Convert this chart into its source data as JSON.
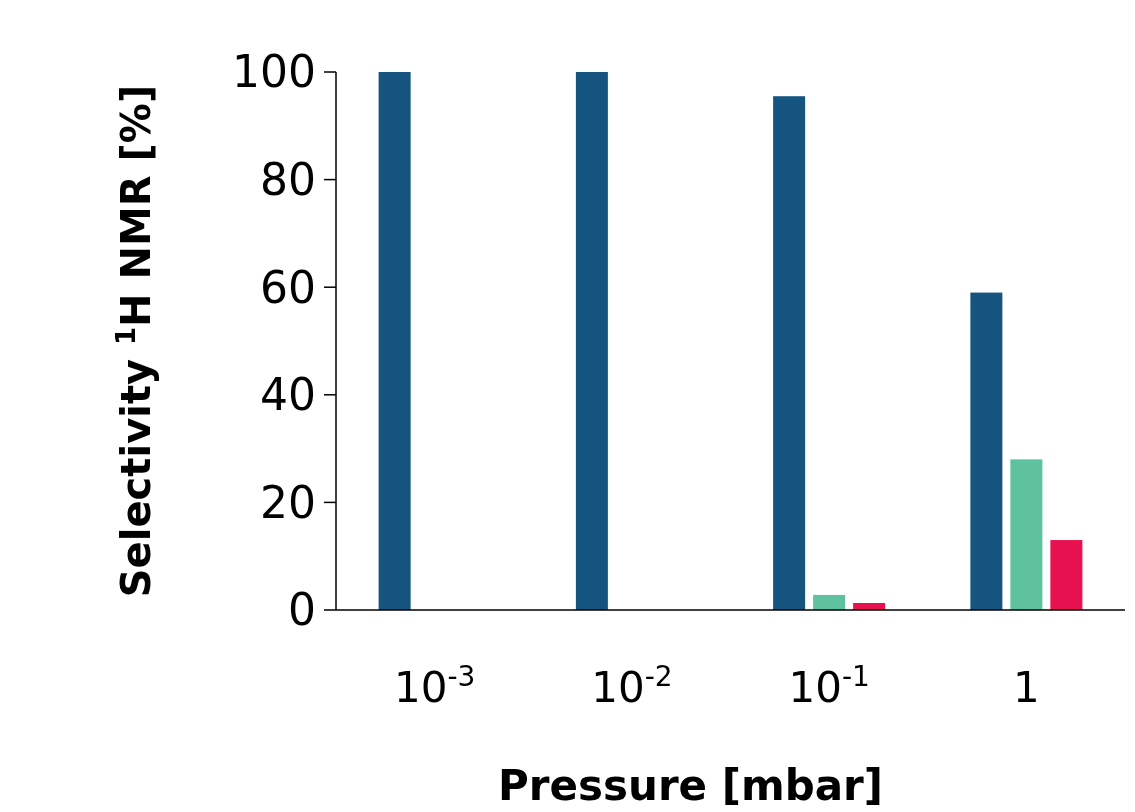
{
  "chart_data": {
    "type": "bar",
    "xlabel": "Pressure [mbar]",
    "ylabel": "Selectivity $^{1}$H NMR [%]",
    "categories": [
      "10$^{-3}$",
      "10$^{-2}$",
      "10$^{-1}$",
      "1"
    ],
    "series": [
      {
        "color": "#14547f",
        "values": [
          100,
          100,
          95.5,
          59
        ]
      },
      {
        "color": "#5fc29e",
        "values": [
          0,
          0,
          2.8,
          28
        ]
      },
      {
        "color": "#e8114f",
        "values": [
          0,
          0,
          1.3,
          13
        ]
      }
    ],
    "ylim": [
      0,
      100
    ],
    "yticks": [
      0,
      20,
      40,
      60,
      80,
      100
    ],
    "grid": false
  }
}
